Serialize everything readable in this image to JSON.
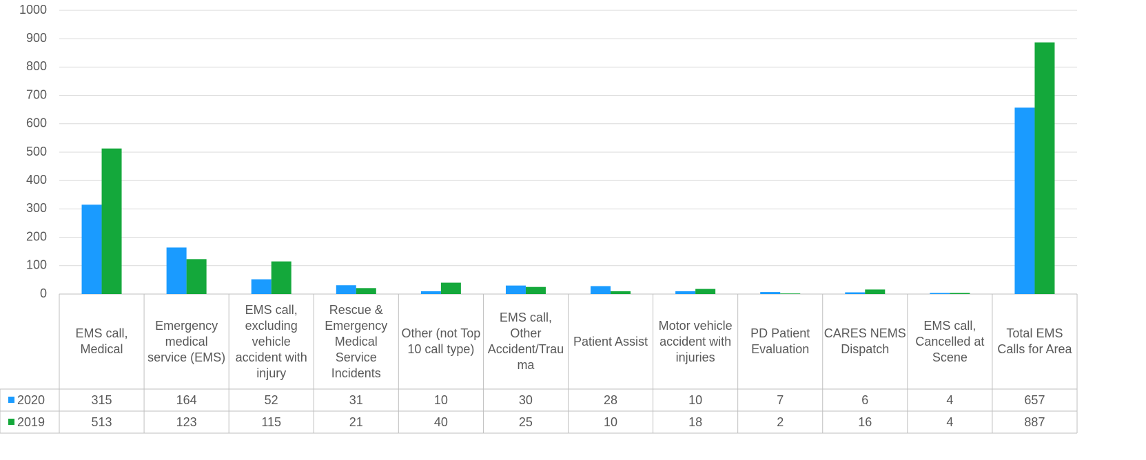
{
  "chart_data": {
    "type": "bar",
    "categories": [
      "EMS call, Medical",
      "Emergency medical service (EMS)",
      "EMS call, excluding vehicle accident with injury",
      "Rescue & Emergency Medical Service Incidents",
      "Other (not Top 10 call type)",
      "EMS call, Other Accident/Trauma",
      "Patient Assist",
      "Motor vehicle accident with injuries",
      "PD Patient Evaluation",
      "CARES NEMS Dispatch",
      "EMS call, Cancelled at Scene",
      "Total EMS Calls for Area"
    ],
    "series": [
      {
        "name": "2020",
        "color": "#1a9bff",
        "values": [
          315,
          164,
          52,
          31,
          10,
          30,
          28,
          10,
          7,
          6,
          4,
          657
        ]
      },
      {
        "name": "2019",
        "color": "#14a83b",
        "values": [
          513,
          123,
          115,
          21,
          40,
          25,
          10,
          18,
          2,
          16,
          4,
          887
        ]
      }
    ],
    "ylim": [
      0,
      1000
    ],
    "yticks": [
      0,
      100,
      200,
      300,
      400,
      500,
      600,
      700,
      800,
      900,
      1000
    ],
    "grid": true
  }
}
